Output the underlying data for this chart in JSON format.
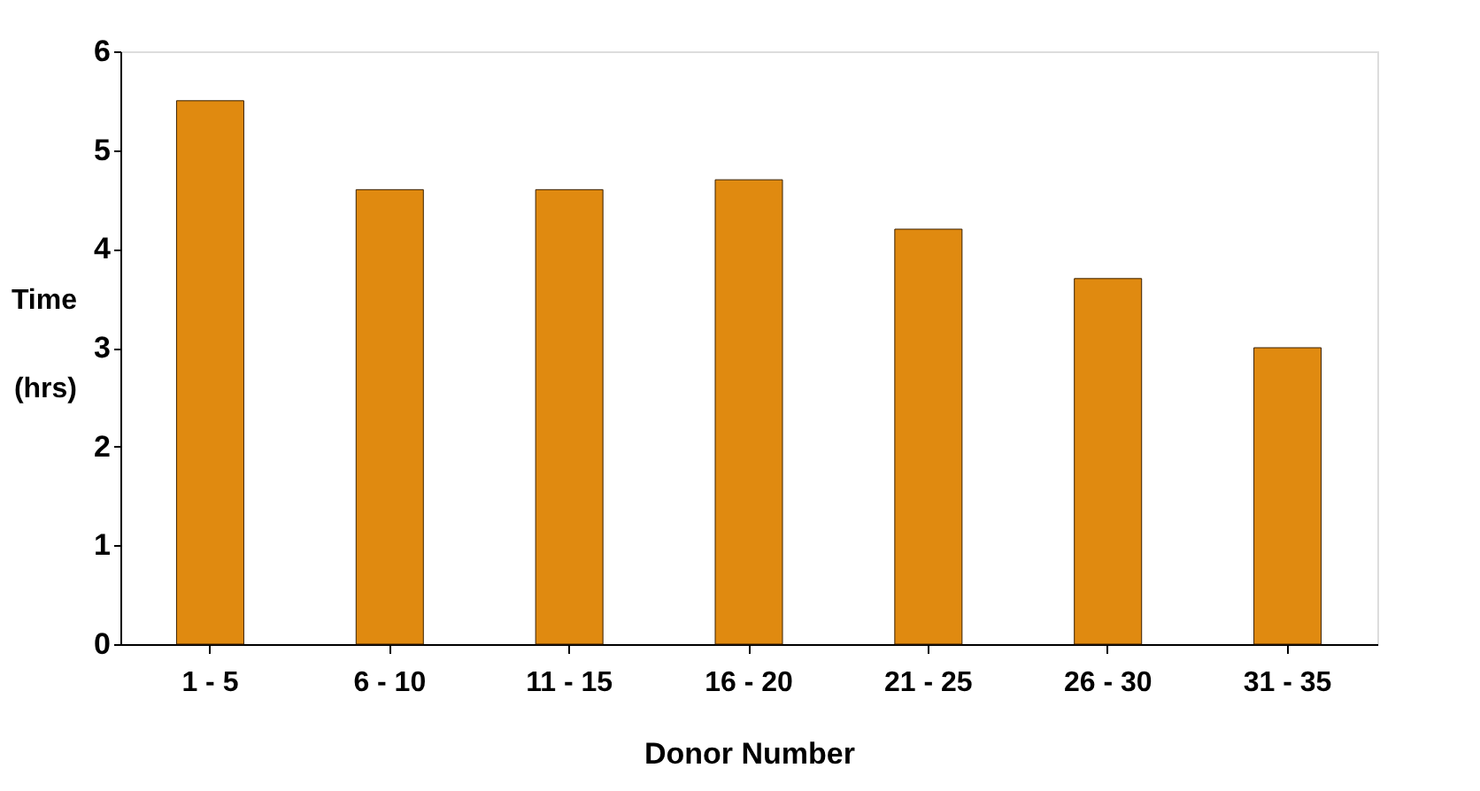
{
  "chart_data": {
    "type": "bar",
    "xlabel": "Donor Number",
    "ylabel": "Time (hrs)",
    "categories": [
      "1 - 5",
      "6 - 10",
      "11 - 15",
      "16 - 20",
      "21 - 25",
      "26 - 30",
      "31 - 35"
    ],
    "values": [
      5.5,
      4.6,
      4.6,
      4.7,
      4.2,
      3.7,
      3.0
    ],
    "color": "#e08a10",
    "ylim": [
      0,
      6
    ],
    "yticks": [
      0,
      1,
      2,
      3,
      4,
      5,
      6
    ],
    "grid": false
  }
}
